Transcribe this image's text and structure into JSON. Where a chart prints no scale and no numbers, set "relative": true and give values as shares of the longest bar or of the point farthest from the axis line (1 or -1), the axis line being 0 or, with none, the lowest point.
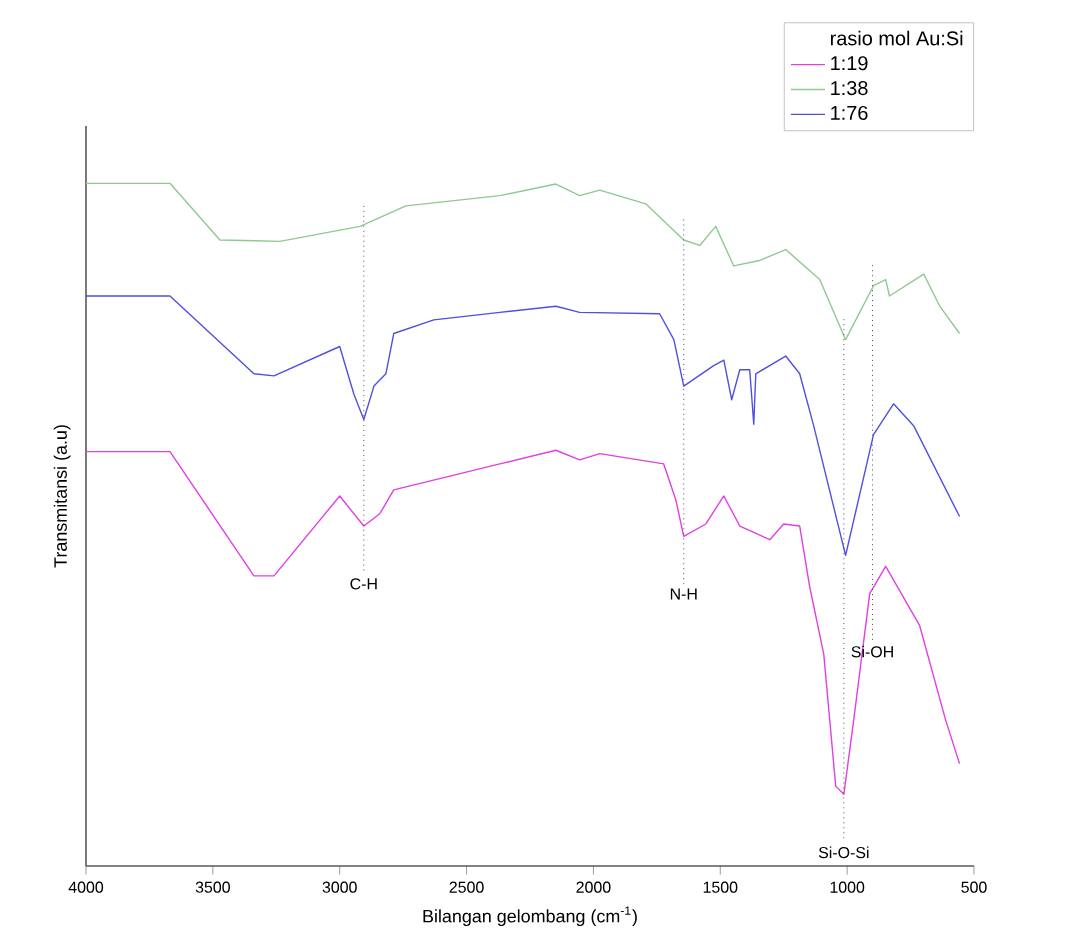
{
  "chart_data": {
    "type": "line",
    "relative": true,
    "xlabel": "Bilangan gelombang (cm$^{-1}$)",
    "ylabel": "Transmitansi (a.u)",
    "xlim": [
      4000,
      500
    ],
    "xticks": [
      4000,
      3500,
      3000,
      2500,
      2000,
      1500,
      1000,
      500
    ],
    "legend": "top right",
    "legend_title": "rasio mol Au:Si",
    "grid": false,
    "marker": "none",
    "line_style": "solid",
    "series": [
      {
        "name": "1:19",
        "color": "#e040e0",
        "x": [
          4000,
          3669,
          3338,
          3259,
          3000,
          2905,
          2842,
          2787,
          2369,
          2148,
          2054,
          1975,
          1723,
          1675,
          1644,
          1557,
          1486,
          1423,
          1305,
          1250,
          1187,
          1148,
          1092,
          1045,
          1013,
          974,
          911,
          848,
          714,
          612,
          557
        ],
        "values": [
          0.607,
          0.607,
          0.425,
          0.425,
          0.542,
          0.498,
          0.516,
          0.551,
          0.589,
          0.609,
          0.595,
          0.604,
          0.589,
          0.536,
          0.483,
          0.501,
          0.542,
          0.498,
          0.478,
          0.501,
          0.498,
          0.41,
          0.31,
          0.117,
          0.105,
          0.214,
          0.399,
          0.439,
          0.352,
          0.214,
          0.15
        ]
      },
      {
        "name": "1:38",
        "color": "#90c890",
        "x": [
          4000,
          3669,
          3472,
          3236,
          2920,
          2739,
          2369,
          2148,
          2054,
          1975,
          1794,
          1644,
          1581,
          1518,
          1447,
          1345,
          1242,
          1108,
          1006,
          896,
          848,
          833,
          698,
          635,
          557
        ],
        "values": [
          1.0,
          1.0,
          0.917,
          0.915,
          0.937,
          0.967,
          0.982,
          0.999,
          0.982,
          0.99,
          0.97,
          0.917,
          0.909,
          0.937,
          0.879,
          0.887,
          0.903,
          0.859,
          0.771,
          0.85,
          0.859,
          0.835,
          0.867,
          0.82,
          0.78
        ]
      },
      {
        "name": "1:76",
        "color": "#5050e0",
        "x": [
          4000,
          3669,
          3338,
          3259,
          3000,
          2944,
          2905,
          2865,
          2818,
          2787,
          2629,
          2369,
          2148,
          2054,
          1739,
          1683,
          1644,
          1526,
          1486,
          1455,
          1423,
          1384,
          1368,
          1360,
          1242,
          1187,
          1132,
          1006,
          896,
          817,
          738,
          557
        ],
        "values": [
          0.835,
          0.835,
          0.721,
          0.718,
          0.761,
          0.691,
          0.654,
          0.703,
          0.721,
          0.78,
          0.8,
          0.811,
          0.82,
          0.811,
          0.809,
          0.771,
          0.703,
          0.733,
          0.741,
          0.683,
          0.727,
          0.727,
          0.647,
          0.721,
          0.747,
          0.721,
          0.645,
          0.455,
          0.632,
          0.677,
          0.645,
          0.512
        ]
      }
    ],
    "ref_lines": [
      {
        "axis": "x",
        "value": 2905,
        "label": "C-H",
        "line_style": "dotted"
      },
      {
        "axis": "x",
        "value": 1644,
        "label": "N-H",
        "line_style": "dotted"
      },
      {
        "axis": "x",
        "value": 1013,
        "label": "Si-O-Si",
        "line_style": "dotted"
      },
      {
        "axis": "x",
        "value": 900,
        "label": "Si-OH",
        "line_style": "dotted"
      }
    ]
  }
}
